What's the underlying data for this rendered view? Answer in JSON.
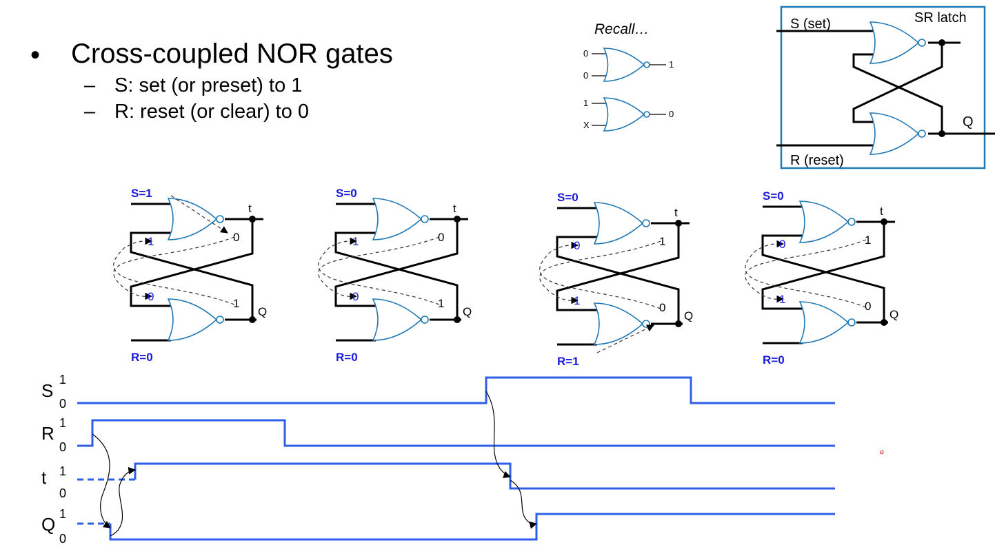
{
  "slide": {
    "bullet": "•",
    "title": "Cross-coupled NOR gates",
    "sub_dash": "–",
    "sub1": "S: set (or preset) to 1",
    "sub2": "R: reset (or clear) to 0"
  },
  "recall": {
    "title": "Recall…",
    "gate1": {
      "in_a": "0",
      "in_b": "0",
      "out": "1"
    },
    "gate2": {
      "in_a": "1",
      "in_b": "X",
      "out": "0"
    }
  },
  "latch_box": {
    "title": "SR latch",
    "s_label": "S (set)",
    "r_label": "R (reset)",
    "q_label": "Q"
  },
  "states": [
    {
      "s": "S=1",
      "r": "R=0",
      "t": "t",
      "q": "Q",
      "in_top": "1",
      "in_bot": "0",
      "out_top": "0",
      "out_bot": "1"
    },
    {
      "s": "S=0",
      "r": "R=0",
      "t": "t",
      "q": "Q",
      "in_top": "1",
      "in_bot": "0",
      "out_top": "0",
      "out_bot": "1"
    },
    {
      "s": "S=0",
      "r": "R=1",
      "t": "t",
      "q": "Q",
      "in_top": "0",
      "in_bot": "1",
      "out_top": "1",
      "out_bot": "0"
    },
    {
      "s": "S=0",
      "r": "R=0",
      "t": "t",
      "q": "Q",
      "in_top": "0",
      "in_bot": "1",
      "out_top": "1",
      "out_bot": "0"
    }
  ],
  "timing": {
    "signals": [
      {
        "name": "S",
        "hi": "1",
        "lo": "0"
      },
      {
        "name": "R",
        "hi": "1",
        "lo": "0"
      },
      {
        "name": "t",
        "hi": "1",
        "lo": "0"
      },
      {
        "name": "Q",
        "hi": "1",
        "lo": "0"
      }
    ],
    "stray_mark": "a",
    "colors": {
      "signal": "#2d5ee8",
      "gate": "#1f78b4",
      "label": "#1a1adc"
    }
  }
}
